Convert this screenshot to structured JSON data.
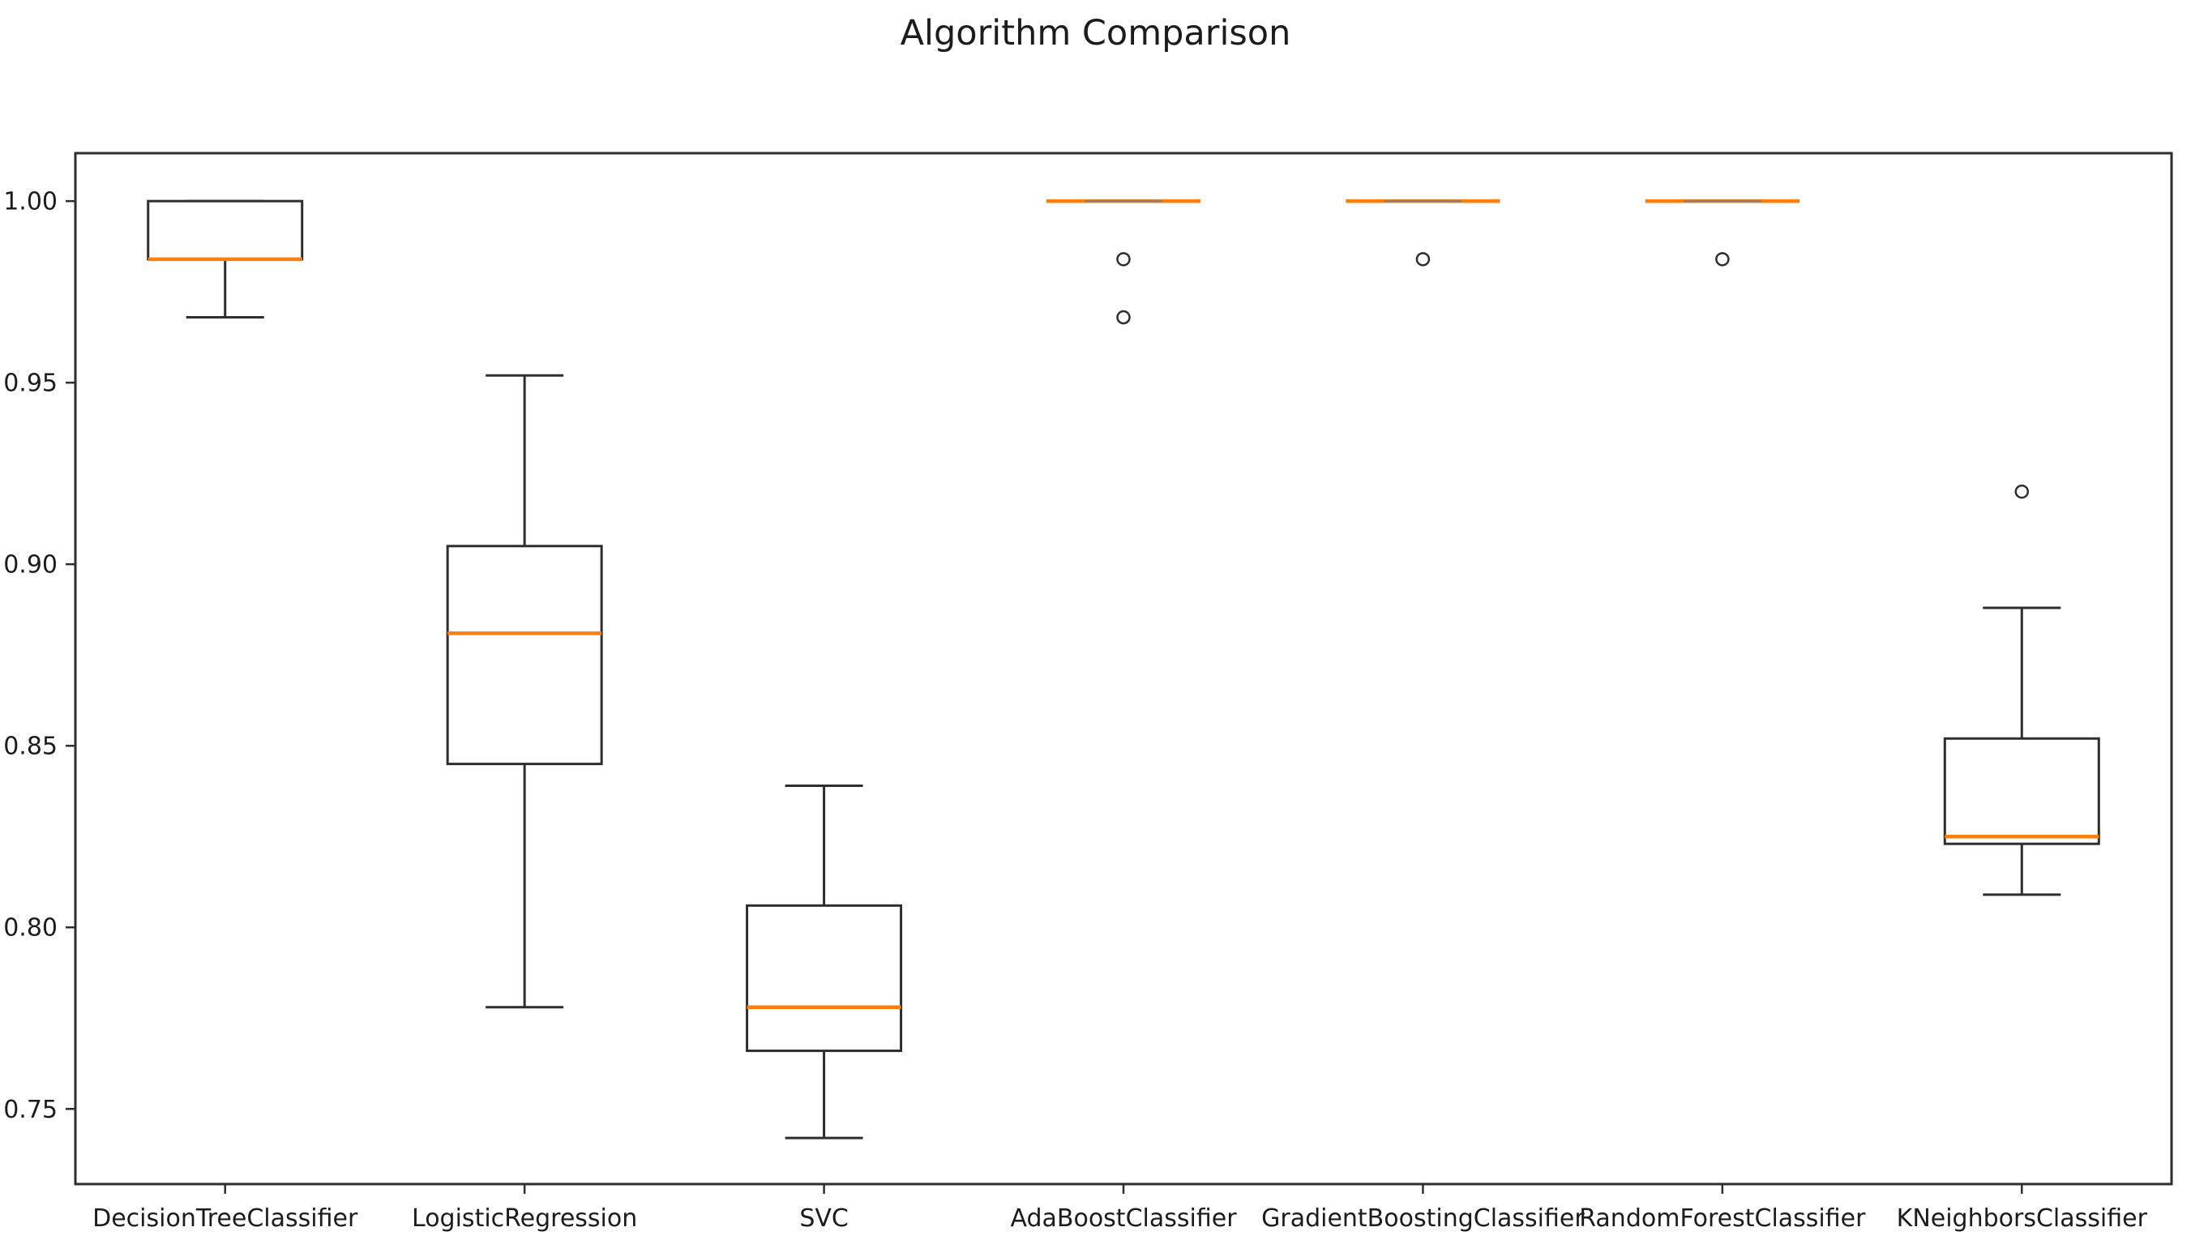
{
  "figure": {
    "title": "Algorithm Comparison"
  },
  "colors": {
    "line": "#2e2e2e",
    "median": "#ff7f0e",
    "cap_overlap": "#8a8076",
    "background": "#ffffff",
    "text": "#1c1c1c"
  },
  "chart_data": {
    "type": "boxplot",
    "title": "Algorithm Comparison",
    "xlabel": "",
    "ylabel": "",
    "grid": false,
    "legend": "none",
    "ylim": [
      0.7293,
      1.0132
    ],
    "y_ticks": [
      1.0,
      0.95,
      0.9,
      0.85,
      0.8,
      0.75
    ],
    "y_tick_labels": [
      "1.00",
      "0.95",
      "0.90",
      "0.85",
      "0.80",
      "0.75"
    ],
    "categories": [
      "DecisionTreeClassifier",
      "LogisticRegression",
      "SVC",
      "AdaBoostClassifier",
      "GradientBoostingClassifier",
      "RandomForestClassifier",
      "KNeighborsClassifier"
    ],
    "series": [
      {
        "name": "DecisionTreeClassifier",
        "whisker_low": 0.968,
        "q1": 0.984,
        "median": 0.984,
        "q3": 1.0,
        "whisker_high": 1.0,
        "outliers": []
      },
      {
        "name": "LogisticRegression",
        "whisker_low": 0.778,
        "q1": 0.845,
        "median": 0.881,
        "q3": 0.905,
        "whisker_high": 0.952,
        "outliers": []
      },
      {
        "name": "SVC",
        "whisker_low": 0.742,
        "q1": 0.766,
        "median": 0.778,
        "q3": 0.806,
        "whisker_high": 0.839,
        "outliers": []
      },
      {
        "name": "AdaBoostClassifier",
        "whisker_low": 1.0,
        "q1": 1.0,
        "median": 1.0,
        "q3": 1.0,
        "whisker_high": 1.0,
        "outliers": [
          0.984,
          0.968
        ]
      },
      {
        "name": "GradientBoostingClassifier",
        "whisker_low": 1.0,
        "q1": 1.0,
        "median": 1.0,
        "q3": 1.0,
        "whisker_high": 1.0,
        "outliers": [
          0.984
        ]
      },
      {
        "name": "RandomForestClassifier",
        "whisker_low": 1.0,
        "q1": 1.0,
        "median": 1.0,
        "q3": 1.0,
        "whisker_high": 1.0,
        "outliers": [
          0.984
        ]
      },
      {
        "name": "KNeighborsClassifier",
        "whisker_low": 0.809,
        "q1": 0.823,
        "median": 0.825,
        "q3": 0.852,
        "whisker_high": 0.888,
        "outliers": [
          0.92
        ]
      }
    ]
  }
}
